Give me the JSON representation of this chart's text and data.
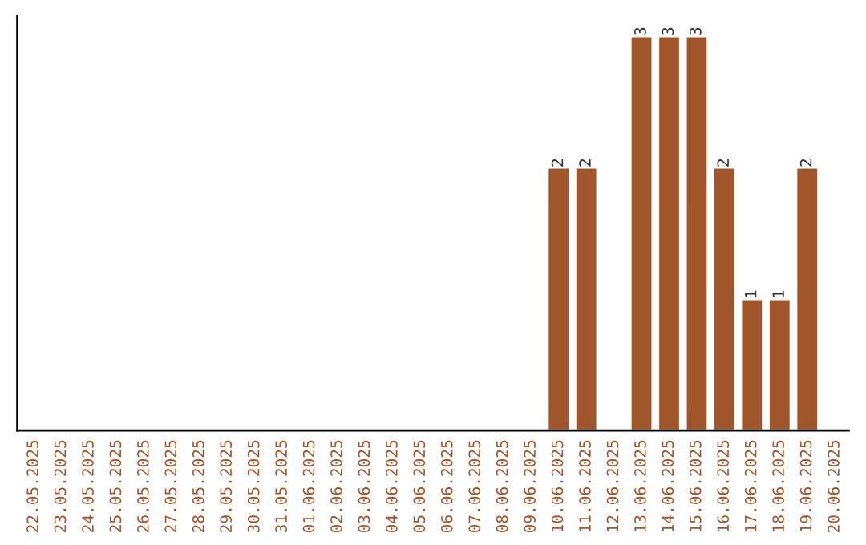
{
  "chart_data": {
    "type": "bar",
    "categories": [
      "22.05.2025",
      "23.05.2025",
      "24.05.2025",
      "25.05.2025",
      "26.05.2025",
      "27.05.2025",
      "28.05.2025",
      "29.05.2025",
      "30.05.2025",
      "31.05.2025",
      "01.06.2025",
      "02.06.2025",
      "03.06.2025",
      "04.06.2025",
      "05.06.2025",
      "06.06.2025",
      "07.06.2025",
      "08.06.2025",
      "09.06.2025",
      "10.06.2025",
      "11.06.2025",
      "12.06.2025",
      "13.06.2025",
      "14.06.2025",
      "15.06.2025",
      "16.06.2025",
      "17.06.2025",
      "18.06.2025",
      "19.06.2025",
      "20.06.2025"
    ],
    "values": [
      null,
      null,
      null,
      null,
      null,
      null,
      null,
      null,
      null,
      null,
      null,
      null,
      null,
      null,
      null,
      null,
      null,
      null,
      null,
      2,
      2,
      null,
      3,
      3,
      3,
      2,
      1,
      1,
      2,
      null
    ],
    "value_labels": [
      null,
      null,
      null,
      null,
      null,
      null,
      null,
      null,
      null,
      null,
      null,
      null,
      null,
      null,
      null,
      null,
      null,
      null,
      null,
      "2",
      "2",
      null,
      "3",
      "3",
      "3",
      "2",
      "1",
      "1",
      "2",
      null
    ],
    "color": "#a0552a",
    "tick_labels": "x",
    "grid": false,
    "legend": false
  }
}
